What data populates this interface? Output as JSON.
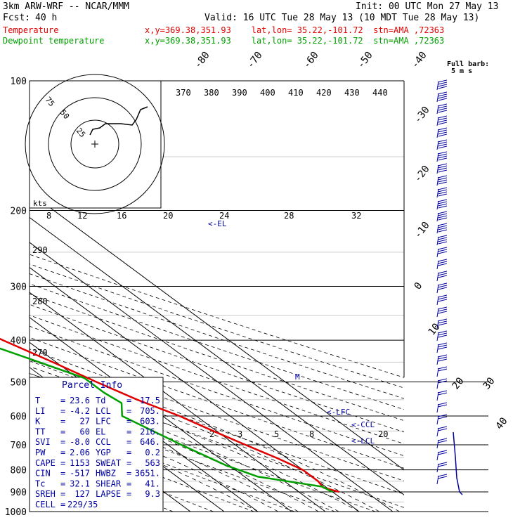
{
  "header": {
    "model": "3km ARW-WRF -- NCAR/MMM",
    "init": "Init: 00 UTC Mon 27 May 13",
    "fcst_label": "Fcst:",
    "fcst_value": "40 h",
    "valid": "Valid: 16 UTC Tue 28 May 13 (10 MDT Tue 28 May 13)",
    "series": [
      {
        "name": "Temperature",
        "location": "x,y=369.38,351.93    lat,lon= 35.22,-101.72  stn=AMA ,72363",
        "color": "#e00000"
      },
      {
        "name": "Dewpoint temperature",
        "location": "x,y=369.38,351.93    lat,lon= 35.22,-101.72  stn=AMA ,72363",
        "color": "#00a000"
      }
    ]
  },
  "chart_data": {
    "type": "line",
    "pressure_ticks": [
      "100",
      "200",
      "300",
      "400",
      "500",
      "600",
      "700",
      "800",
      "900",
      "1000"
    ],
    "pressure_values": [
      100,
      200,
      300,
      400,
      500,
      600,
      700,
      800,
      900,
      1000
    ],
    "isotherm_labels": [
      "-80",
      "-70",
      "-60",
      "-50",
      "-40",
      "-30",
      "-20",
      "-10",
      "0",
      "10",
      "20",
      "30",
      "40"
    ],
    "theta_labels": [
      "370",
      "380",
      "390",
      "400",
      "410",
      "420",
      "430",
      "440"
    ],
    "mixing_ratio_labels": [
      "8",
      "12",
      "16",
      "20",
      "24",
      "28",
      "32"
    ],
    "low_mixing_labels": [
      "2",
      "3",
      "5",
      "8",
      "20"
    ],
    "dry_adiabat_labels": [
      "290",
      "280",
      "270"
    ],
    "series": [
      {
        "name": "Temperature",
        "color": "#e00000",
        "points": [
          [
            100,
            -56
          ],
          [
            115,
            -56
          ],
          [
            130,
            -54
          ],
          [
            150,
            -50
          ],
          [
            170,
            -52
          ],
          [
            190,
            -52
          ],
          [
            210,
            -46
          ],
          [
            235,
            -42
          ],
          [
            260,
            -38
          ],
          [
            300,
            -32
          ],
          [
            340,
            -25
          ],
          [
            400,
            -17
          ],
          [
            450,
            -11
          ],
          [
            500,
            -6
          ],
          [
            550,
            -1
          ],
          [
            600,
            5
          ],
          [
            650,
            9
          ],
          [
            700,
            13
          ],
          [
            750,
            17
          ],
          [
            800,
            20
          ],
          [
            850,
            20
          ],
          [
            880,
            19
          ],
          [
            900,
            22
          ]
        ]
      },
      {
        "name": "Dewpoint temperature",
        "color": "#00a000",
        "points": [
          [
            100,
            -68
          ],
          [
            140,
            -70
          ],
          [
            180,
            -72
          ],
          [
            210,
            -75
          ],
          [
            240,
            -60
          ],
          [
            280,
            -52
          ],
          [
            300,
            -46
          ],
          [
            330,
            -51
          ],
          [
            350,
            -45
          ],
          [
            400,
            -25
          ],
          [
            450,
            -15
          ],
          [
            490,
            -8
          ],
          [
            530,
            -8
          ],
          [
            560,
            -7
          ],
          [
            600,
            -12
          ],
          [
            700,
            -6
          ],
          [
            780,
            -1
          ],
          [
            830,
            4
          ],
          [
            860,
            14
          ],
          [
            875,
            19
          ],
          [
            900,
            20
          ]
        ]
      }
    ],
    "wind_barbs_label": "Full barb: 5 m s-1",
    "hodograph": {
      "units": "kts",
      "ring_labels": [
        "25",
        "50",
        "75"
      ]
    },
    "levels": {
      "el_label": "EL",
      "lfc_label": "LFC",
      "ccl_label": "CCL",
      "lcl_label": "LCL",
      "m_label": "M"
    }
  },
  "parcel_info": {
    "title": "Parcel Info",
    "rows": [
      {
        "k1": "T",
        "v1": "23.6",
        "k2": "Td",
        "v2": "17.5"
      },
      {
        "k1": "LI",
        "v1": "-4.2",
        "k2": "LCL",
        "v2": "705."
      },
      {
        "k1": "K",
        "v1": "27",
        "k2": "LFC",
        "v2": "603."
      },
      {
        "k1": "TT",
        "v1": "60",
        "k2": "EL",
        "v2": "216."
      },
      {
        "k1": "SVI",
        "v1": "-8.0",
        "k2": "CCL",
        "v2": "646."
      },
      {
        "k1": "PW",
        "v1": "2.06",
        "k2": "YGP",
        "v2": "0.2"
      },
      {
        "k1": "CAPE",
        "v1": "1153",
        "k2": "SWEAT",
        "v2": "563"
      },
      {
        "k1": "CIN",
        "v1": "-517",
        "k2": "HWBZ",
        "v2": "3651."
      },
      {
        "k1": "Tc",
        "v1": "32.1",
        "k2": "SHEAR",
        "v2": "41."
      },
      {
        "k1": "SREH",
        "v1": "127",
        "k2": "LAPSE",
        "v2": "9.3"
      },
      {
        "k1": "CELL",
        "v1": "229/35",
        "k2": "",
        "v2": ""
      }
    ]
  }
}
